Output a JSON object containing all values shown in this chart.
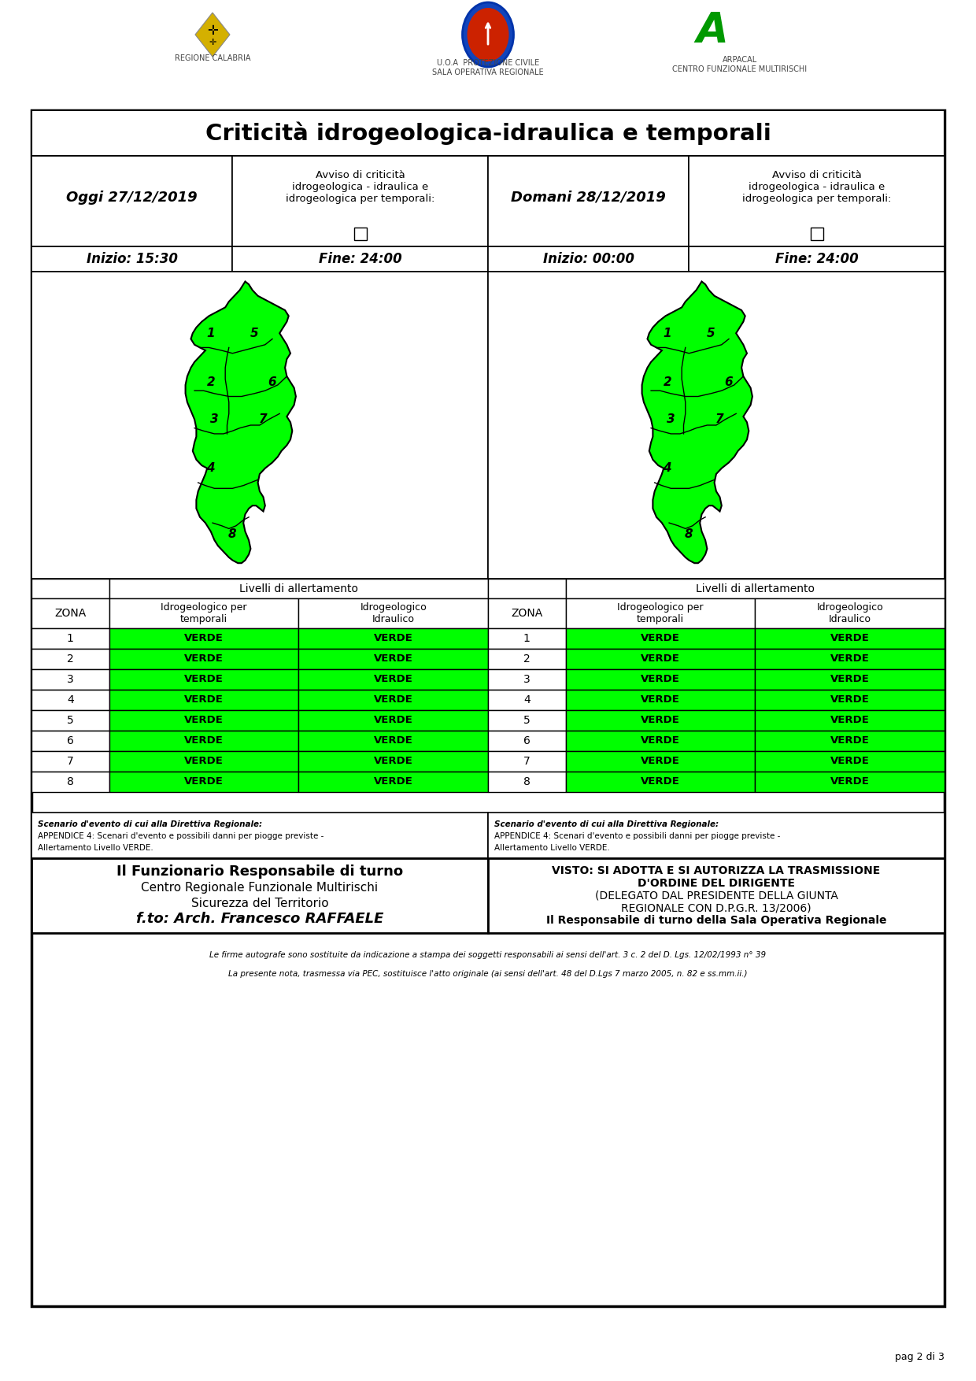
{
  "title": "Criticità idrogeologica-idraulica e temporali",
  "today_label": "Oggi 27/12/2019",
  "tomorrow_label": "Domani 28/12/2019",
  "avviso_text": "Avviso di criticità\nidrogeologica - idraulica e\nidrogeologica per temporali:",
  "today_start": "Inizio: 15:30",
  "today_end": "Fine: 24:00",
  "tomorrow_start": "Inizio: 00:00",
  "tomorrow_end": "Fine: 24:00",
  "zones": [
    1,
    2,
    3,
    4,
    5,
    6,
    7,
    8
  ],
  "today_temporali": [
    "VERDE",
    "VERDE",
    "VERDE",
    "VERDE",
    "VERDE",
    "VERDE",
    "VERDE",
    "VERDE"
  ],
  "today_idraulico": [
    "VERDE",
    "VERDE",
    "VERDE",
    "VERDE",
    "VERDE",
    "VERDE",
    "VERDE",
    "VERDE"
  ],
  "tomorrow_temporali": [
    "VERDE",
    "VERDE",
    "VERDE",
    "VERDE",
    "VERDE",
    "VERDE",
    "VERDE",
    "VERDE"
  ],
  "tomorrow_idraulico": [
    "VERDE",
    "VERDE",
    "VERDE",
    "VERDE",
    "VERDE",
    "VERDE",
    "VERDE",
    "VERDE"
  ],
  "verde_color": "#00FF00",
  "border_color": "#000000",
  "scenario_today": "Scenario d'evento di cui alla Direttiva Regionale:\nAPPENDICE 4: Scenari d'evento e possibili danni per piogge previste -\nAllertamento Livello VERDE.",
  "scenario_tomorrow": "Scenario d'evento di cui alla Direttiva Regionale:\nAPPENDICE 4: Scenari d'evento e possibili danni per piogge previste -\nAllertamento Livello VERDE.",
  "funzionario_line1": "Il Funzionario Responsabile di turno",
  "funzionario_line2": "Centro Regionale Funzionale Multirischi",
  "funzionario_line3": "Sicurezza del Territorio",
  "funzionario_line4": "f.to: Arch. Francesco RAFFAELE",
  "visto_line1": "VISTO: SI ADOTTA E SI AUTORIZZA LA TRASMISSIONE",
  "visto_line2": "D'ORDINE DEL DIRIGENTE",
  "visto_line3": "(DELEGATO DAL PRESIDENTE DELLA GIUNTA",
  "visto_line4": "REGIONALE CON D.P.G.R. 13/2006)",
  "visto_line5": "Il Responsabile di turno della Sala Operativa Regionale",
  "footer1": "Le firme autografe sono sostituite da indicazione a stampa dei soggetti responsabili ai sensi dell'art. 3 c. 2 del D. Lgs. 12/02/1993 n° 39",
  "footer2": "La presente nota, trasmessa via PEC, sostituisce l'atto originale (ai sensi dell'art. 48 del D.Lgs 7 marzo 2005, n. 82 e ss.mm.ii.)",
  "page_label": "pag 2 di 3",
  "table_header_temporali": "Idrogeologico per\ntemporali",
  "table_header_idraulico": "Idrogeologico\nIdraulico",
  "livelli_label": "Livelli di allertamento",
  "zona_label": "ZONA"
}
